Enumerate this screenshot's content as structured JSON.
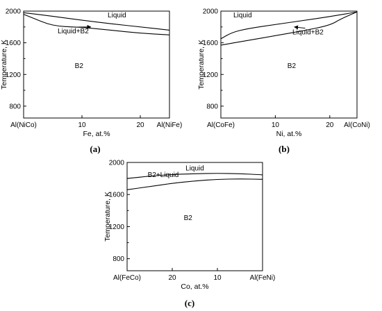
{
  "chart_data": [
    {
      "type": "line",
      "panel": "a",
      "caption": "(a)",
      "xlabel": "Fe, at.%",
      "ylabel": "Temperature, K",
      "xlim": [
        0,
        25
      ],
      "ylim": [
        650,
        2000
      ],
      "x_ticks": [
        {
          "value": 0,
          "label": "Al(NiCo)"
        },
        {
          "value": 10,
          "label": "10"
        },
        {
          "value": 20,
          "label": "20"
        },
        {
          "value": 25,
          "label": "Al(NiFe)"
        }
      ],
      "y_ticks": [
        {
          "value": 800,
          "label": "800"
        },
        {
          "value": 1200,
          "label": "1200"
        },
        {
          "value": 1600,
          "label": "1600"
        },
        {
          "value": 2000,
          "label": "2000"
        }
      ],
      "series": [
        {
          "x": [
            0,
            5,
            10,
            15,
            20,
            25
          ],
          "y": [
            1980,
            1935,
            1885,
            1840,
            1800,
            1760
          ]
        },
        {
          "x": [
            0,
            2,
            4,
            6,
            8,
            10,
            15,
            20,
            25
          ],
          "y": [
            1960,
            1900,
            1840,
            1810,
            1800,
            1795,
            1760,
            1720,
            1700
          ]
        }
      ],
      "regions": [
        {
          "label": "Liquid",
          "x": 16,
          "y": 1920
        },
        {
          "label": "Liquid+B2",
          "x": 8.5,
          "y": 1720,
          "arrow_to": [
            11.5,
            1800
          ]
        },
        {
          "label": "B2",
          "x": 9.5,
          "y": 1280
        }
      ]
    },
    {
      "type": "line",
      "panel": "b",
      "caption": "(b)",
      "xlabel": "Ni, at.%",
      "ylabel": "Temperature, K",
      "xlim": [
        0,
        25
      ],
      "ylim": [
        650,
        2000
      ],
      "x_ticks": [
        {
          "value": 0,
          "label": "Al(CoFe)"
        },
        {
          "value": 10,
          "label": "10"
        },
        {
          "value": 20,
          "label": "20"
        },
        {
          "value": 25,
          "label": "Al(CoNi)"
        }
      ],
      "y_ticks": [
        {
          "value": 800,
          "label": "800"
        },
        {
          "value": 1200,
          "label": "1200"
        },
        {
          "value": 1600,
          "label": "1600"
        },
        {
          "value": 2000,
          "label": "2000"
        }
      ],
      "series": [
        {
          "x": [
            0,
            2,
            5,
            10,
            15,
            20,
            25
          ],
          "y": [
            1650,
            1730,
            1780,
            1830,
            1880,
            1930,
            1990
          ]
        },
        {
          "x": [
            0,
            5,
            10,
            15,
            20,
            22,
            25
          ],
          "y": [
            1570,
            1630,
            1690,
            1750,
            1820,
            1900,
            1990
          ]
        }
      ],
      "regions": [
        {
          "label": "Liquid",
          "x": 4,
          "y": 1920
        },
        {
          "label": "Liquid+B2",
          "x": 16,
          "y": 1705,
          "arrow_to": [
            13.5,
            1800
          ]
        },
        {
          "label": "B2",
          "x": 13,
          "y": 1280
        }
      ]
    },
    {
      "type": "line",
      "panel": "c",
      "caption": "(c)",
      "xlabel": "Co, at.%",
      "ylabel": "Temperature, K",
      "xlim": [
        30,
        0
      ],
      "ylim": [
        650,
        2000
      ],
      "x_ticks": [
        {
          "value": 30,
          "label": "Al(FeCo)"
        },
        {
          "value": 20,
          "label": "20"
        },
        {
          "value": 10,
          "label": "10"
        },
        {
          "value": 0,
          "label": "Al(FeNi)"
        }
      ],
      "y_ticks": [
        {
          "value": 800,
          "label": "800"
        },
        {
          "value": 1200,
          "label": "1200"
        },
        {
          "value": 1600,
          "label": "1600"
        },
        {
          "value": 2000,
          "label": "2000"
        }
      ],
      "series": [
        {
          "x": [
            30,
            25,
            20,
            15,
            10,
            5,
            0
          ],
          "y": [
            1800,
            1830,
            1850,
            1860,
            1865,
            1860,
            1845
          ]
        },
        {
          "x": [
            30,
            25,
            20,
            15,
            10,
            5,
            0
          ],
          "y": [
            1660,
            1700,
            1740,
            1770,
            1790,
            1795,
            1790
          ]
        }
      ],
      "regions": [
        {
          "label": "Liquid",
          "x": 15,
          "y": 1900
        },
        {
          "label": "B2+Liquid",
          "x": 22,
          "y": 1820
        },
        {
          "label": "B2",
          "x": 16.5,
          "y": 1280
        }
      ]
    }
  ]
}
